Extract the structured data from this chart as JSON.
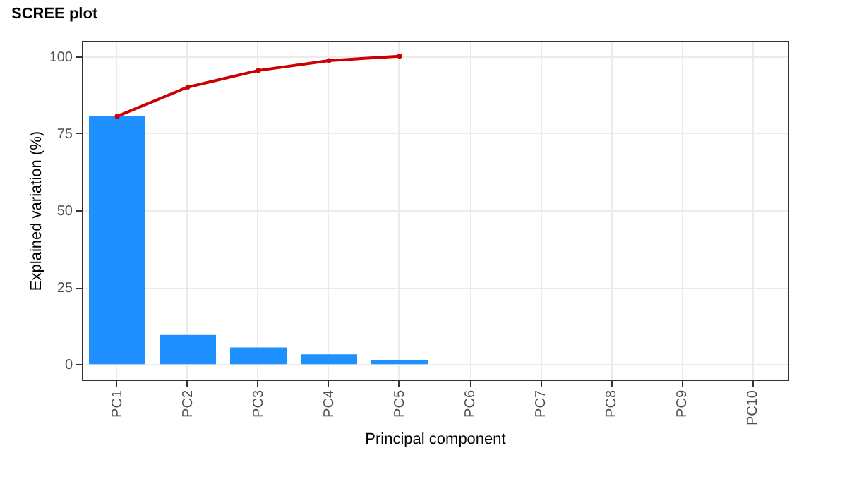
{
  "chart_data": {
    "type": "bar",
    "title": "SCREE plot",
    "xlabel": "Principal component",
    "ylabel": "Explained variation (%)",
    "categories": [
      "PC1",
      "PC2",
      "PC3",
      "PC4",
      "PC5",
      "PC6",
      "PC7",
      "PC8",
      "PC9",
      "PC10"
    ],
    "series": [
      {
        "color": "#1e90ff",
        "values": [
          80.5,
          9.5,
          5.4,
          3.2,
          1.4,
          0,
          0,
          0,
          0,
          0
        ]
      },
      {
        "type": "line",
        "color": "#cc0000",
        "values": [
          80.5,
          90,
          95.4,
          98.6,
          100,
          null,
          null,
          null,
          null,
          null
        ]
      }
    ],
    "ylim": [
      -5,
      105
    ],
    "yticks": [
      0,
      25,
      50,
      75,
      100
    ],
    "grid": true,
    "marker": "circle",
    "line_style": "solid"
  }
}
